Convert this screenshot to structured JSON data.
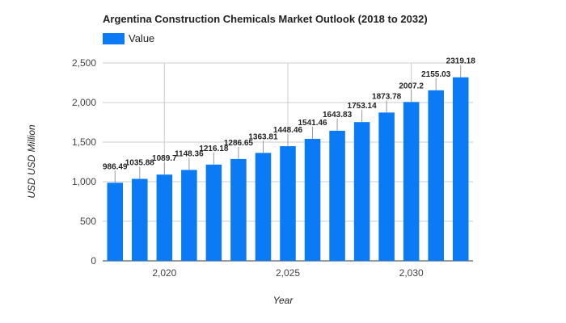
{
  "chart_data": {
    "type": "bar",
    "title": "Argentina Construction Chemicals Market Outlook (2018 to 2032)",
    "xlabel": "Year",
    "ylabel": "USD USD Million",
    "legend": {
      "position": "top-left",
      "entries": [
        "Value"
      ]
    },
    "color": "#0a7bf5",
    "grid": true,
    "x": [
      2018,
      2019,
      2020,
      2021,
      2022,
      2023,
      2024,
      2025,
      2026,
      2027,
      2028,
      2029,
      2030,
      2031,
      2032
    ],
    "series": [
      {
        "name": "Value",
        "values": [
          986.49,
          1035.88,
          1089.7,
          1148.36,
          1216.18,
          1286.65,
          1363.81,
          1448.46,
          1541.46,
          1643.83,
          1753.14,
          1873.78,
          2007.2,
          2155.03,
          2319.18
        ],
        "labels": [
          "986.49",
          "1035.88",
          "1089.7",
          "1148.36",
          "1216.18",
          "1286.65",
          "1363.81",
          "1448.46",
          "1541.46",
          "1643.83",
          "1753.14",
          "1873.78",
          "2007.2",
          "2155.03",
          "2319.18"
        ]
      }
    ],
    "ylim": [
      0,
      2500
    ],
    "yticks": [
      0,
      500,
      1000,
      1500,
      2000,
      2500
    ],
    "ytick_labels": [
      "0",
      "500",
      "1,000",
      "1,500",
      "2,000",
      "2,500"
    ],
    "xticks": [
      2020,
      2025,
      2030
    ],
    "xtick_labels": [
      "2,020",
      "2,025",
      "2,030"
    ]
  }
}
